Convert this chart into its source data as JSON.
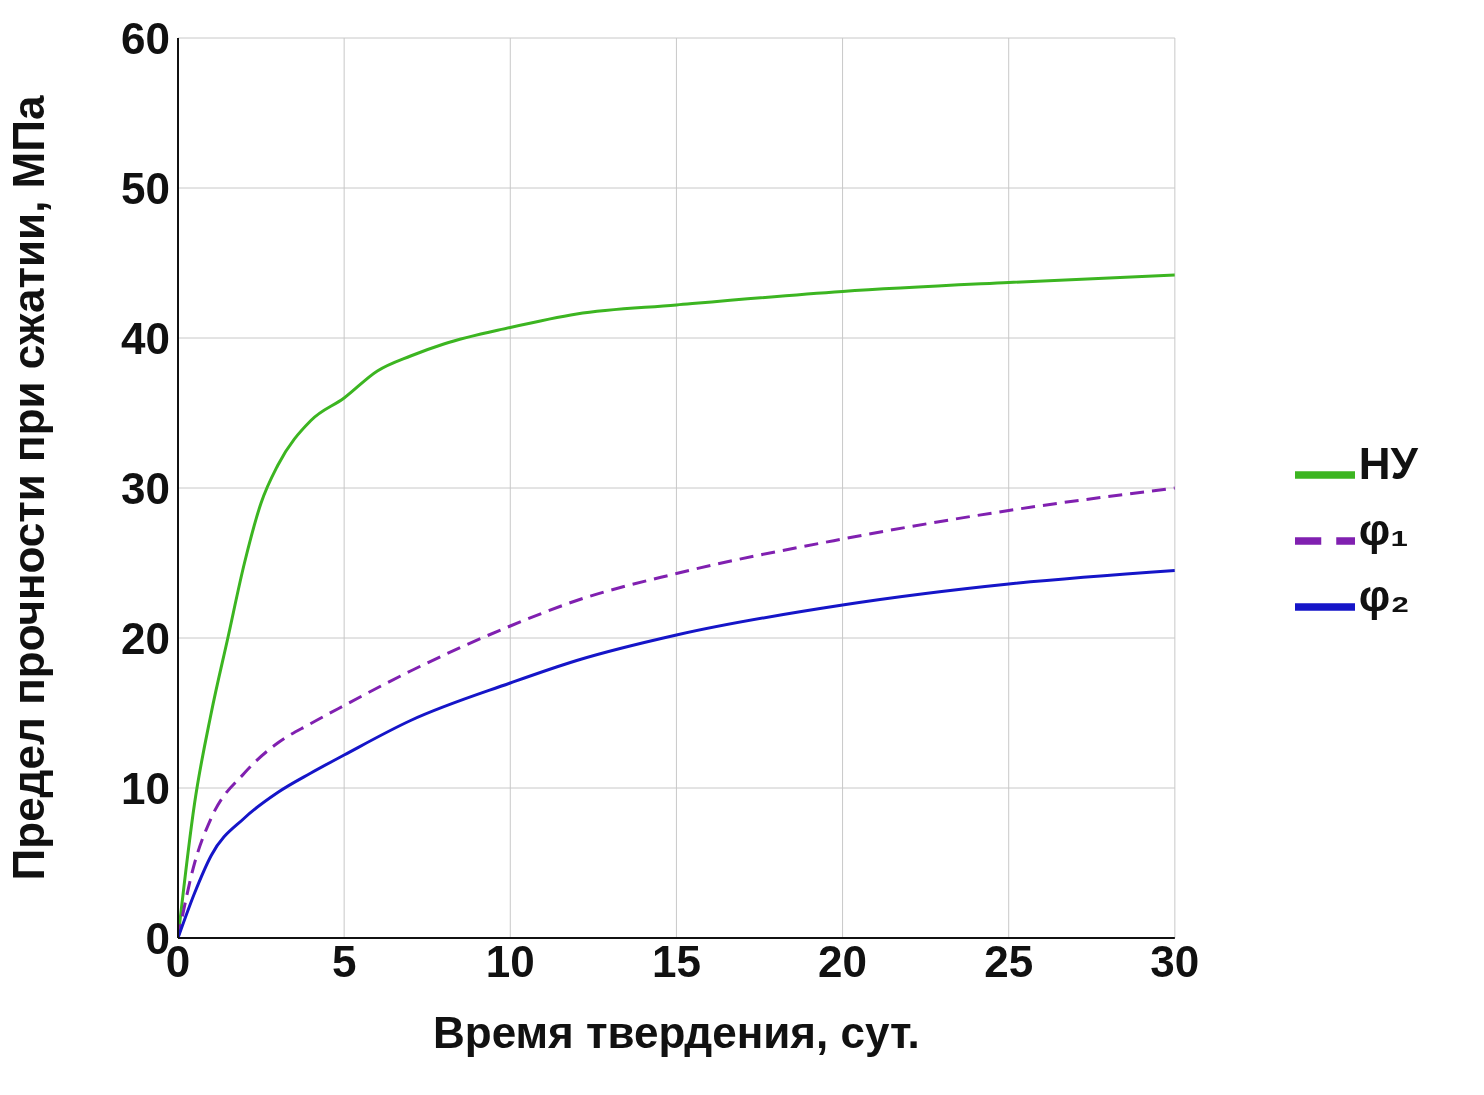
{
  "chart_data": {
    "type": "line",
    "xlabel": "Время твердения, сут.",
    "ylabel": "Предел прочности при сжатии, МПа",
    "xlim": [
      0,
      30
    ],
    "xticks": [
      0,
      5,
      10,
      15,
      20,
      25,
      30
    ],
    "ylim": [
      0,
      60
    ],
    "yticks": [
      0,
      10,
      20,
      30,
      40,
      50,
      60
    ],
    "grid": true,
    "legend": "right",
    "series": [
      {
        "name": "НУ",
        "color": "#3cb521",
        "line_style": "solid",
        "x": [
          0,
          0.5,
          1,
          1.5,
          2,
          2.5,
          3,
          4,
          5,
          6,
          7,
          8,
          10,
          12,
          15,
          20,
          25,
          30
        ],
        "values": [
          0,
          9,
          15,
          20,
          25,
          29,
          31.5,
          34.5,
          36,
          37.8,
          38.8,
          39.6,
          40.7,
          41.6,
          42.2,
          43.1,
          43.7,
          44.2
        ]
      },
      {
        "name": "φ₁",
        "color": "#8020b0",
        "line_style": "dashed",
        "x": [
          0,
          0.5,
          1,
          2,
          3,
          4,
          5,
          7,
          10,
          12,
          15,
          20,
          25,
          30
        ],
        "values": [
          0,
          5,
          8,
          11,
          13,
          14.3,
          15.5,
          17.8,
          20.8,
          22.5,
          24.3,
          26.6,
          28.5,
          30
        ]
      },
      {
        "name": "φ₂",
        "color": "#1515c8",
        "line_style": "solid",
        "x": [
          0,
          0.5,
          1,
          2,
          3,
          4,
          5,
          7,
          10,
          12,
          15,
          20,
          25,
          30
        ],
        "values": [
          0,
          3,
          5.5,
          8,
          9.7,
          11,
          12.2,
          14.5,
          17,
          18.5,
          20.2,
          22.2,
          23.6,
          24.5
        ]
      }
    ]
  }
}
